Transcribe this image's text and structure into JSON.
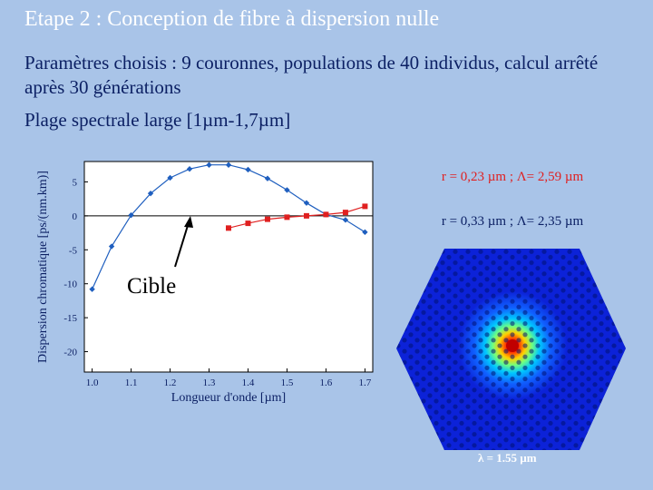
{
  "slide": {
    "title": "Etape 2 : Conception de fibre à dispersion nulle",
    "params_text": "Paramètres choisis : 9 couronnes, populations de 40 individus, calcul arrêté après 30 générations",
    "range_text": "Plage spectrale large [1µm-1,7µm]",
    "target_label": "Cible",
    "mode_caption": "λ = 1.55 µm"
  },
  "chart_data": {
    "type": "line",
    "xlabel": "Longueur d'onde [µm]",
    "ylabel": "Dispersion chromatique [ps/(nm.km)]",
    "xlim": [
      0.98,
      1.72
    ],
    "ylim": [
      -23,
      8
    ],
    "xticks": [
      1.0,
      1.1,
      1.2,
      1.3,
      1.4,
      1.5,
      1.6,
      1.7
    ],
    "xtick_labels": [
      "1.0",
      "1.1",
      "1.2",
      "1.3",
      "1.4",
      "1.5",
      "1.6",
      "1.7"
    ],
    "yticks": [
      5,
      0,
      -5,
      -10,
      -15,
      -20
    ],
    "ytick_labels": [
      "5",
      "0",
      "-5",
      "-10",
      "-15",
      "-20"
    ],
    "zero_line": true,
    "grid": false,
    "series": [
      {
        "name": "r = 0,23 µm ; Λ= 2,59 µm",
        "color": "#1f5fbf",
        "marker": "diamond",
        "x": [
          1.0,
          1.05,
          1.1,
          1.15,
          1.2,
          1.25,
          1.3,
          1.35,
          1.4,
          1.45,
          1.5,
          1.55,
          1.6,
          1.65,
          1.7
        ],
        "y": [
          -10.8,
          -4.5,
          0.1,
          3.3,
          5.6,
          6.9,
          7.5,
          7.5,
          6.8,
          5.5,
          3.8,
          1.9,
          0.2,
          -0.6,
          -2.4
        ]
      },
      {
        "name": "r = 0,33 µm ; Λ= 2,35 µm",
        "color": "#e02020",
        "marker": "square",
        "x": [
          1.35,
          1.4,
          1.45,
          1.5,
          1.55,
          1.6,
          1.65,
          1.7
        ],
        "y": [
          -1.8,
          -1.1,
          -0.5,
          -0.2,
          0.0,
          0.2,
          0.5,
          1.4
        ]
      }
    ]
  }
}
